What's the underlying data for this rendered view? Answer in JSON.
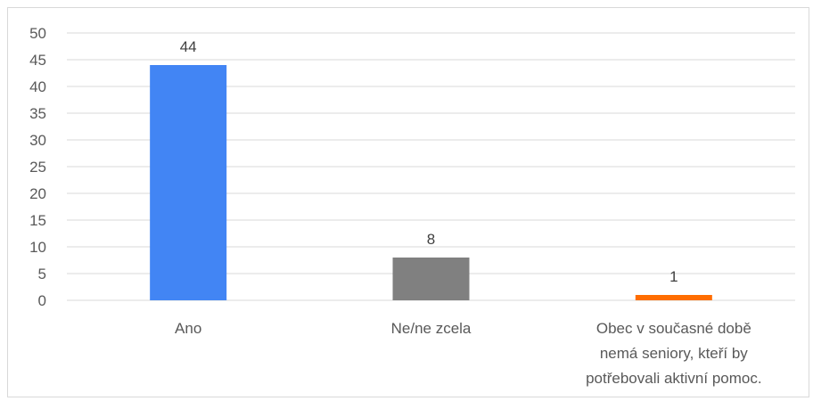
{
  "chart_data": {
    "type": "bar",
    "title": "",
    "xlabel": "",
    "ylabel": "",
    "categories": [
      [
        "Ano"
      ],
      [
        "Ne/ne zcela"
      ],
      [
        "Obec v současné době",
        "nemá seniory, kteří by",
        "potřebovali aktivní pomoc."
      ]
    ],
    "values": [
      44,
      8,
      1
    ],
    "colors": [
      "#4285f4",
      "#808080",
      "#ff6d01"
    ],
    "ylim": [
      0,
      50
    ],
    "yticks": [
      0,
      5,
      10,
      15,
      20,
      25,
      30,
      35,
      40,
      45,
      50
    ],
    "grid": true,
    "gridColor": "#d9d9d9",
    "data_labels": true,
    "legend": "none"
  }
}
